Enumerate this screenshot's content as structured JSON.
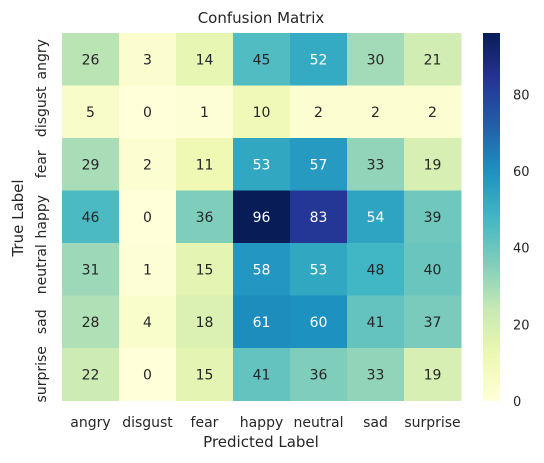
{
  "chart_data": {
    "type": "heatmap",
    "title": "Confusion Matrix",
    "xlabel": "Predicted Label",
    "ylabel": "True Label",
    "x_categories": [
      "angry",
      "disgust",
      "fear",
      "happy",
      "neutral",
      "sad",
      "surprise"
    ],
    "y_categories": [
      "angry",
      "disgust",
      "fear",
      "happy",
      "neutral",
      "sad",
      "surprise"
    ],
    "values": [
      [
        26,
        3,
        14,
        45,
        52,
        30,
        21
      ],
      [
        5,
        0,
        1,
        10,
        2,
        2,
        2
      ],
      [
        29,
        2,
        11,
        53,
        57,
        33,
        19
      ],
      [
        46,
        0,
        36,
        96,
        83,
        54,
        39
      ],
      [
        31,
        1,
        15,
        58,
        53,
        48,
        40
      ],
      [
        28,
        4,
        18,
        61,
        60,
        41,
        37
      ],
      [
        22,
        0,
        15,
        41,
        36,
        33,
        19
      ]
    ],
    "colormap": "YlGnBu",
    "color_range": [
      0,
      96
    ],
    "colorbar_ticks": [
      0,
      20,
      40,
      60,
      80
    ]
  }
}
